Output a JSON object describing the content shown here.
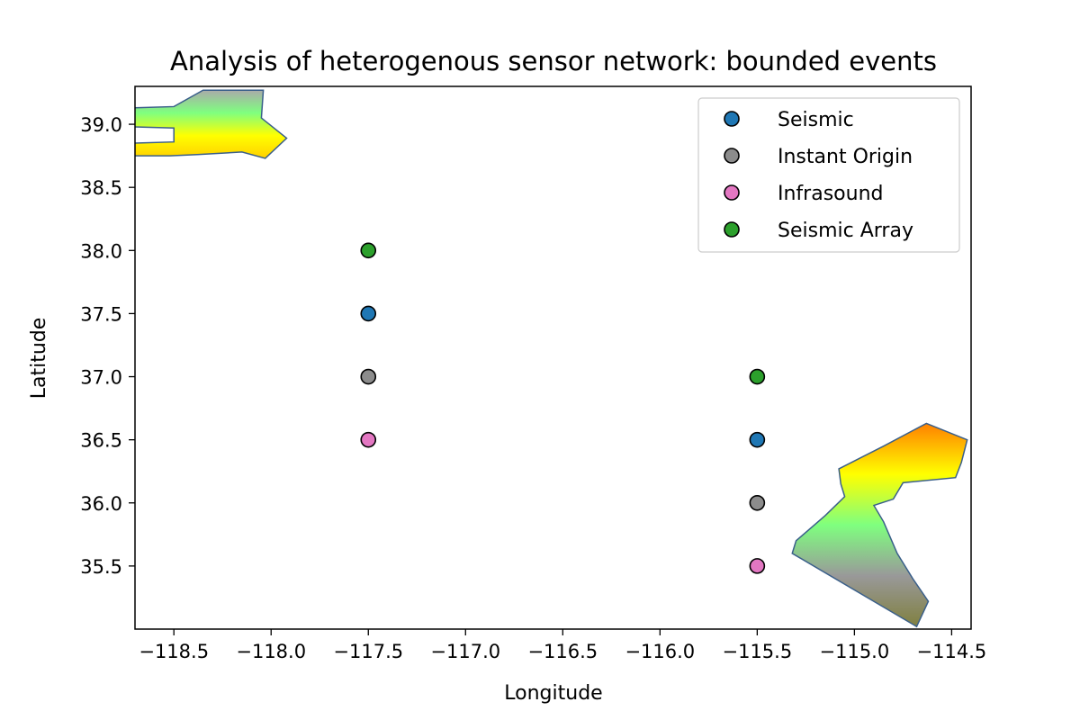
{
  "chart_data": {
    "type": "scatter",
    "title": "Analysis of heterogenous sensor network: bounded events",
    "xlabel": "Longitude",
    "ylabel": "Latitude",
    "xlim": [
      -118.7,
      -114.4
    ],
    "ylim": [
      35.0,
      39.3
    ],
    "xticks": [
      -118.5,
      -118.0,
      -117.5,
      -117.0,
      -116.5,
      -116.0,
      -115.5,
      -115.0,
      -114.5
    ],
    "xtick_labels": [
      "−118.5",
      "−118.0",
      "−117.5",
      "−117.0",
      "−116.5",
      "−116.0",
      "−115.5",
      "−115.0",
      "−114.5"
    ],
    "yticks": [
      35.5,
      36.0,
      36.5,
      37.0,
      37.5,
      38.0,
      38.5,
      39.0
    ],
    "ytick_labels": [
      "35.5",
      "36.0",
      "36.5",
      "37.0",
      "37.5",
      "38.0",
      "38.5",
      "39.0"
    ],
    "grid": false,
    "legend_position": "top-right",
    "series": [
      {
        "name": "Seismic",
        "color": "#1f77b4",
        "x": [
          -117.5,
          -115.5
        ],
        "y": [
          37.5,
          36.5
        ]
      },
      {
        "name": "Instant Origin",
        "color": "#8c8c8c",
        "x": [
          -117.5,
          -115.5
        ],
        "y": [
          37.0,
          36.0
        ]
      },
      {
        "name": "Infrasound",
        "color": "#e377c2",
        "x": [
          -117.5,
          -115.5
        ],
        "y": [
          36.5,
          35.5
        ]
      },
      {
        "name": "Seismic Array",
        "color": "#2ca02c",
        "x": [
          -117.5,
          -115.5
        ],
        "y": [
          38.0,
          37.0
        ]
      }
    ],
    "regions": [
      {
        "id": "north-west",
        "gradient": [
          "#aaaaaa",
          "#7fff7f",
          "#ffff00",
          "#ffd000"
        ],
        "outline": [
          [
            -118.72,
            39.13
          ],
          [
            -118.5,
            39.14
          ],
          [
            -118.35,
            39.27
          ],
          [
            -118.04,
            39.27
          ],
          [
            -118.05,
            39.05
          ],
          [
            -117.92,
            38.89
          ],
          [
            -118.03,
            38.73
          ],
          [
            -118.15,
            38.78
          ],
          [
            -118.38,
            38.76
          ],
          [
            -118.52,
            38.75
          ],
          [
            -118.72,
            38.75
          ],
          [
            -118.72,
            38.85
          ],
          [
            -118.5,
            38.86
          ],
          [
            -118.5,
            38.97
          ],
          [
            -118.72,
            38.98
          ]
        ]
      },
      {
        "id": "south-east",
        "gradient": [
          "#ff8000",
          "#ffff00",
          "#7fff7f",
          "#999999",
          "#808040"
        ],
        "outline": [
          [
            -115.08,
            36.27
          ],
          [
            -114.85,
            36.45
          ],
          [
            -114.63,
            36.63
          ],
          [
            -114.42,
            36.5
          ],
          [
            -114.45,
            36.32
          ],
          [
            -114.48,
            36.2
          ],
          [
            -114.75,
            36.16
          ],
          [
            -114.8,
            36.03
          ],
          [
            -114.9,
            35.98
          ],
          [
            -114.85,
            35.85
          ],
          [
            -114.78,
            35.6
          ],
          [
            -114.7,
            35.4
          ],
          [
            -114.62,
            35.22
          ],
          [
            -114.68,
            35.02
          ],
          [
            -115.32,
            35.6
          ],
          [
            -115.3,
            35.7
          ],
          [
            -115.15,
            35.9
          ],
          [
            -115.05,
            36.05
          ],
          [
            -115.07,
            36.15
          ]
        ]
      }
    ]
  }
}
